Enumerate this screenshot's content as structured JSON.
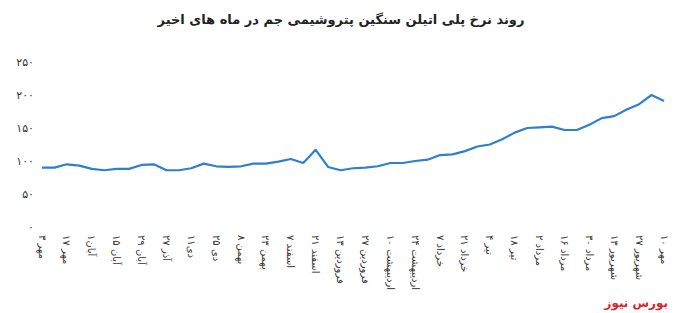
{
  "chart_data": {
    "type": "line",
    "title": "روند نرخ پلی اتیلن سنگین پتروشیمی جم در ماه های اخیر",
    "source": "بورس نیوز",
    "categories": [
      "۳ مهر",
      null,
      "۱۷ مهر",
      null,
      "۱آبان",
      null,
      "۱۵ آبان",
      null,
      "۲۹ آبان",
      null,
      "۲۷ آذر",
      null,
      "۱۱دی",
      null,
      "۲۵ دی",
      null,
      "۸ بهمن",
      null,
      "۲۳ بهمن",
      null,
      "۷ اسفند",
      null,
      "۲۱ اسفند",
      null,
      "۱۳ فروردین",
      null,
      "۲۷ فروردین",
      null,
      "۱۰ اردیبهشت",
      null,
      "۲۴ اردیبهشت",
      null,
      "۷ خرداد",
      null,
      "۲۱ خرداد",
      null,
      "۴ تیر",
      null,
      "۱۸ تیر",
      null,
      "۲ مرداد",
      null,
      "۱۶ مرداد",
      null,
      "۳۰ مرداد",
      null,
      "۱۳ شهریور",
      null,
      "۲۷ شهریور",
      null,
      "۱۰ مهر"
    ],
    "values": [
      90,
      90,
      95,
      93,
      88,
      86,
      88,
      88,
      94,
      95,
      86,
      86,
      89,
      96,
      92,
      91,
      92,
      96,
      96,
      99,
      103,
      97,
      117,
      91,
      86,
      89,
      90,
      92,
      97,
      97,
      100,
      102,
      109,
      110,
      115,
      122,
      125,
      133,
      143,
      150,
      151,
      152,
      147,
      147,
      155,
      165,
      168,
      178,
      186,
      200,
      191
    ],
    "color": "#2f7fd0",
    "colors": [
      "#2f7fd0",
      "#2f7fd0",
      "#e8262b",
      "#2f7fd0",
      "#e8262b",
      "#2f7fd0",
      "#2f7fd0",
      "#2f7fd0",
      "#2f7fd0",
      "#e8262b",
      "#2f7fd0",
      "#2f7fd0",
      "#2f7fd0",
      "#2f7fd0",
      "#2f7fd0",
      "#2f7fd0",
      "#2f7fd0",
      "#2f7fd0",
      "#2f7fd0",
      "#2f7fd0",
      "#e8262b",
      "#2f7fd0",
      "#2f7fd0",
      "#2f7fd0",
      "#2f7fd0",
      "#2f7fd0",
      "#2f7fd0",
      "#2f7fd0",
      "#2f7fd0",
      "#2f7fd0",
      "#2f7fd0",
      "#2f7fd0",
      "#2f7fd0",
      "#2f7fd0",
      "#2f7fd0",
      "#2f7fd0",
      "#2f7fd0",
      "#2f7fd0",
      "#2f7fd0",
      "#2f7fd0",
      "#2f7fd0",
      "#e8262b",
      "#2f7fd0",
      "#2f7fd0",
      "#2f7fd0",
      "#2f7fd0",
      "#2f7fd0",
      "#2f7fd0",
      "#2f7fd0",
      "#e8262b",
      "#2f7fd0"
    ],
    "ylim": [
      0,
      250
    ],
    "yticks": [
      {
        "value": 0,
        "label": "۰"
      },
      {
        "value": 50,
        "label": "۵۰"
      },
      {
        "value": 100,
        "label": "۱۰۰"
      },
      {
        "value": 150,
        "label": "۱۵۰"
      },
      {
        "value": 200,
        "label": "۲۰۰"
      },
      {
        "value": 250,
        "label": "۲۵۰"
      }
    ],
    "grid": false,
    "marker": "none"
  }
}
